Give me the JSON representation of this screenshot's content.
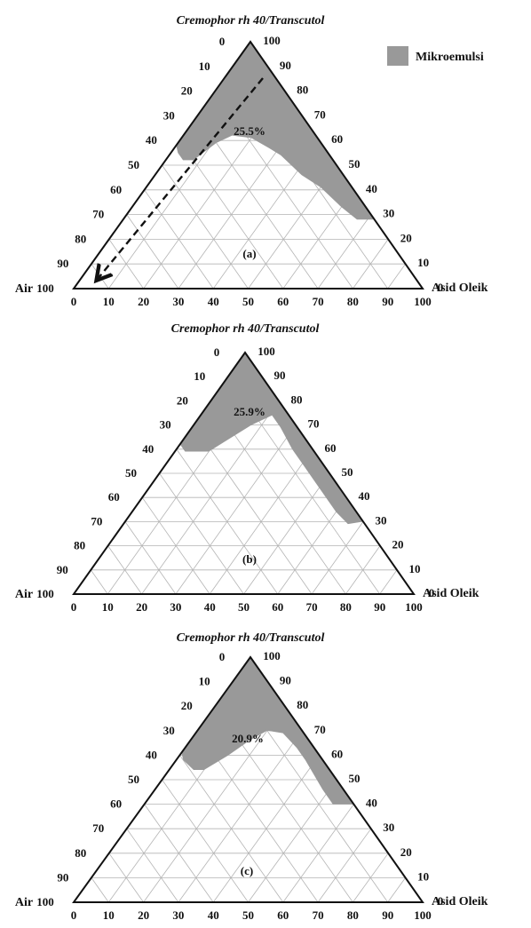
{
  "figure": {
    "legend": {
      "label": "Mikroemulsi",
      "color": "#999999"
    }
  },
  "chart_data": [
    {
      "type": "ternary",
      "panel_label": "(a)",
      "title": "Cremophor rh 40/Transcutol",
      "vertices": {
        "top": "",
        "left": "Air",
        "right": "Asid Oleik"
      },
      "ticks": {
        "left": [
          "0",
          "10",
          "20",
          "30",
          "40",
          "50",
          "60",
          "70",
          "80",
          "90",
          "100"
        ],
        "right": [
          "100",
          "90",
          "80",
          "70",
          "60",
          "50",
          "40",
          "30",
          "20",
          "10",
          "0"
        ],
        "bottom": [
          "0",
          "10",
          "20",
          "30",
          "40",
          "50",
          "60",
          "70",
          "80",
          "90",
          "100"
        ]
      },
      "region_label": "25.5%",
      "region_percent": 25.5,
      "region_color": "#999999",
      "dilution_line": true,
      "region_boundary": [
        {
          "s": 100,
          "o": 0,
          "w": 0
        },
        {
          "s": 58,
          "o": 0,
          "w": 42
        },
        {
          "s": 55,
          "o": 2,
          "w": 43
        },
        {
          "s": 52,
          "o": 5,
          "w": 43
        },
        {
          "s": 52,
          "o": 8,
          "w": 40
        },
        {
          "s": 59,
          "o": 11,
          "w": 30
        },
        {
          "s": 62,
          "o": 14,
          "w": 24
        },
        {
          "s": 61,
          "o": 20,
          "w": 19
        },
        {
          "s": 57,
          "o": 27,
          "w": 16
        },
        {
          "s": 54,
          "o": 32,
          "w": 14
        },
        {
          "s": 50,
          "o": 37,
          "w": 13
        },
        {
          "s": 46,
          "o": 42,
          "w": 12
        },
        {
          "s": 41,
          "o": 50,
          "w": 9
        },
        {
          "s": 33,
          "o": 60,
          "w": 7
        },
        {
          "s": 28,
          "o": 67,
          "w": 5
        },
        {
          "s": 28,
          "o": 72,
          "w": 0
        }
      ]
    },
    {
      "type": "ternary",
      "panel_label": "(b)",
      "title": "Cremophor rh 40/Transcutol",
      "vertices": {
        "top": "",
        "left": "Air",
        "right": "Asid Oleik"
      },
      "ticks": {
        "left": [
          "0",
          "10",
          "20",
          "30",
          "40",
          "50",
          "60",
          "70",
          "80",
          "90",
          "100"
        ],
        "right": [
          "100",
          "90",
          "80",
          "70",
          "60",
          "50",
          "40",
          "30",
          "20",
          "10",
          "0"
        ],
        "bottom": [
          "0",
          "10",
          "20",
          "30",
          "40",
          "50",
          "60",
          "70",
          "80",
          "90",
          "100"
        ]
      },
      "region_label": "25.9%",
      "region_percent": 25.9,
      "region_color": "#999999",
      "dilution_line": false,
      "region_boundary": [
        {
          "s": 100,
          "o": 0,
          "w": 0
        },
        {
          "s": 62,
          "o": 0,
          "w": 38
        },
        {
          "s": 59,
          "o": 3,
          "w": 38
        },
        {
          "s": 59,
          "o": 10,
          "w": 31
        },
        {
          "s": 70,
          "o": 17,
          "w": 13
        },
        {
          "s": 74,
          "o": 21,
          "w": 5
        },
        {
          "s": 69,
          "o": 26,
          "w": 5
        },
        {
          "s": 60,
          "o": 34,
          "w": 6
        },
        {
          "s": 53,
          "o": 41,
          "w": 6
        },
        {
          "s": 46,
          "o": 48,
          "w": 6
        },
        {
          "s": 34,
          "o": 60,
          "w": 6
        },
        {
          "s": 29,
          "o": 66,
          "w": 5
        },
        {
          "s": 30,
          "o": 70,
          "w": 0
        }
      ]
    },
    {
      "type": "ternary",
      "panel_label": "(c)",
      "title": "Cremophor rh 40/Transcutol",
      "vertices": {
        "top": "",
        "left": "Air",
        "right": "Asid Oleik"
      },
      "ticks": {
        "left": [
          "0",
          "10",
          "20",
          "30",
          "40",
          "50",
          "60",
          "70",
          "80",
          "90",
          "100"
        ],
        "right": [
          "100",
          "90",
          "80",
          "70",
          "60",
          "50",
          "40",
          "30",
          "20",
          "10",
          "0"
        ],
        "bottom": [
          "0",
          "10",
          "20",
          "30",
          "40",
          "50",
          "60",
          "70",
          "80",
          "90",
          "100"
        ]
      },
      "region_label": "20.9%",
      "region_percent": 20.9,
      "region_color": "#999999",
      "dilution_line": false,
      "region_boundary": [
        {
          "s": 100,
          "o": 0,
          "w": 0
        },
        {
          "s": 61,
          "o": 0,
          "w": 39
        },
        {
          "s": 58,
          "o": 2,
          "w": 40
        },
        {
          "s": 54,
          "o": 7,
          "w": 39
        },
        {
          "s": 54,
          "o": 10,
          "w": 36
        },
        {
          "s": 60,
          "o": 14,
          "w": 26
        },
        {
          "s": 66,
          "o": 17,
          "w": 17
        },
        {
          "s": 70,
          "o": 20,
          "w": 10
        },
        {
          "s": 69,
          "o": 25,
          "w": 6
        },
        {
          "s": 63,
          "o": 32,
          "w": 5
        },
        {
          "s": 58,
          "o": 37,
          "w": 5
        },
        {
          "s": 46,
          "o": 48,
          "w": 6
        },
        {
          "s": 40,
          "o": 54,
          "w": 6
        },
        {
          "s": 40,
          "o": 60,
          "w": 0
        }
      ]
    }
  ]
}
